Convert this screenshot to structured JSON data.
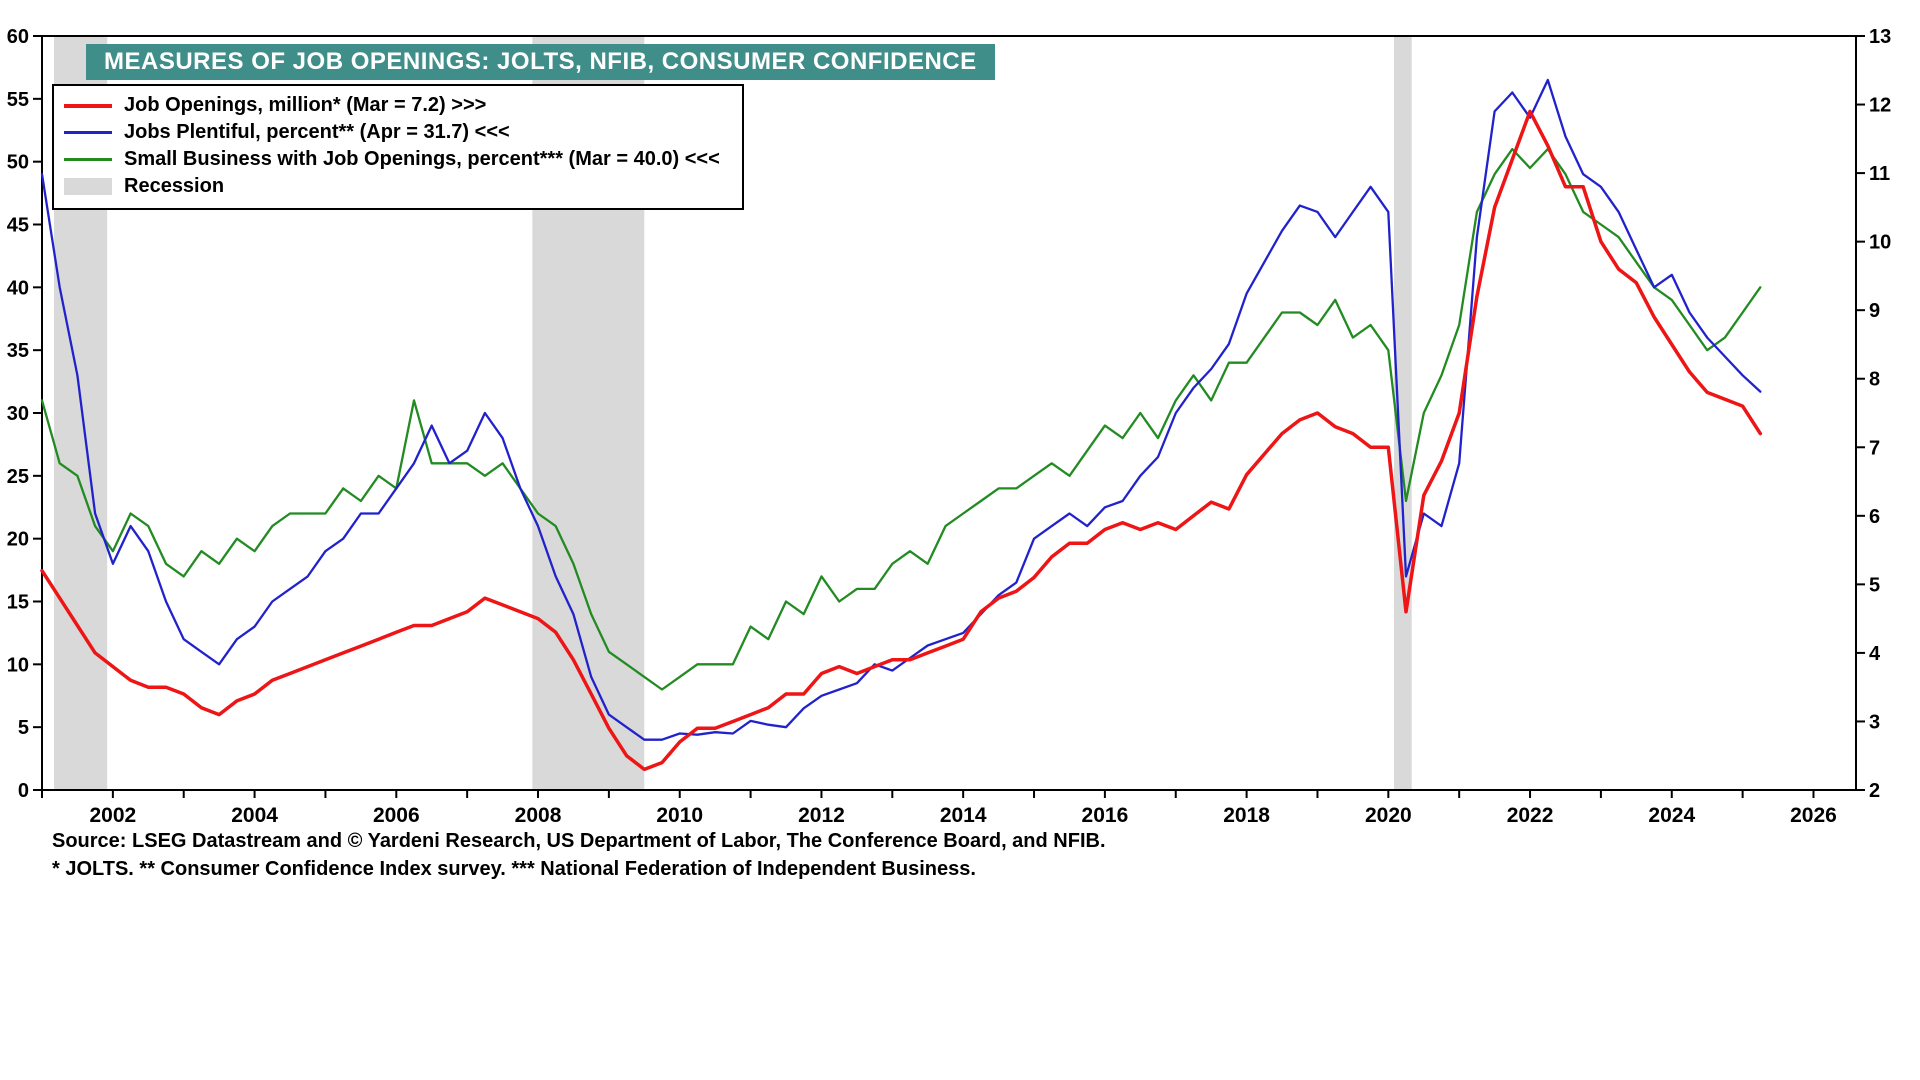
{
  "title": "MEASURES OF JOB OPENINGS: JOLTS, NFIB, CONSUMER CONFIDENCE",
  "source_line": "Source: LSEG Datastream and © Yardeni Research, US Department of Labor, The Conference Board, and NFIB.",
  "footnote_line": "* JOLTS.   ** Consumer Confidence Index survey.   *** National Federation of Independent Business.",
  "colors": {
    "red": "#ed1515",
    "blue": "#2222cc",
    "green": "#228b22",
    "recession": "#d9d9d9",
    "title_bg": "#3f8e89",
    "frame": "#000000"
  },
  "chart_data": {
    "type": "line",
    "title": "MEASURES OF JOB OPENINGS: JOLTS, NFIB, CONSUMER CONFIDENCE",
    "x_axis": {
      "min": 2001,
      "max": 2026.6,
      "major_ticks": [
        2002,
        2004,
        2006,
        2008,
        2010,
        2012,
        2014,
        2016,
        2018,
        2020,
        2022,
        2024,
        2026
      ],
      "minor_tick_every": 1
    },
    "left_axis": {
      "min": 0,
      "max": 60,
      "ticks": [
        0,
        5,
        10,
        15,
        20,
        25,
        30,
        35,
        40,
        45,
        50,
        55,
        60
      ]
    },
    "right_axis": {
      "min": 2,
      "max": 13,
      "ticks": [
        2,
        3,
        4,
        5,
        6,
        7,
        8,
        9,
        10,
        11,
        12,
        13
      ]
    },
    "recession_bands": [
      [
        2001.17,
        2001.92
      ],
      [
        2007.92,
        2009.5
      ],
      [
        2020.08,
        2020.33
      ]
    ],
    "legend": {
      "recession_label": "Recession"
    },
    "x": [
      2001.0,
      2001.25,
      2001.5,
      2001.75,
      2002.0,
      2002.25,
      2002.5,
      2002.75,
      2003.0,
      2003.25,
      2003.5,
      2003.75,
      2004.0,
      2004.25,
      2004.5,
      2004.75,
      2005.0,
      2005.25,
      2005.5,
      2005.75,
      2006.0,
      2006.25,
      2006.5,
      2006.75,
      2007.0,
      2007.25,
      2007.5,
      2007.75,
      2008.0,
      2008.25,
      2008.5,
      2008.75,
      2009.0,
      2009.25,
      2009.5,
      2009.75,
      2010.0,
      2010.25,
      2010.5,
      2010.75,
      2011.0,
      2011.25,
      2011.5,
      2011.75,
      2012.0,
      2012.25,
      2012.5,
      2012.75,
      2013.0,
      2013.25,
      2013.5,
      2013.75,
      2014.0,
      2014.25,
      2014.5,
      2014.75,
      2015.0,
      2015.25,
      2015.5,
      2015.75,
      2016.0,
      2016.25,
      2016.5,
      2016.75,
      2017.0,
      2017.25,
      2017.5,
      2017.75,
      2018.0,
      2018.25,
      2018.5,
      2018.75,
      2019.0,
      2019.25,
      2019.5,
      2019.75,
      2020.0,
      2020.25,
      2020.5,
      2020.75,
      2021.0,
      2021.25,
      2021.5,
      2021.75,
      2022.0,
      2022.25,
      2022.5,
      2022.75,
      2023.0,
      2023.25,
      2023.5,
      2023.75,
      2024.0,
      2024.25,
      2024.5,
      2024.75,
      2025.0,
      2025.25
    ],
    "series": [
      {
        "name": "job-openings",
        "label": "Job Openings, million* (Mar = 7.2) >>>",
        "color_key": "red",
        "axis": "right",
        "stroke_width": 3.5,
        "latest": {
          "period": "Mar",
          "value": 7.2
        },
        "values": [
          5.2,
          4.8,
          4.4,
          4.0,
          3.8,
          3.6,
          3.5,
          3.5,
          3.4,
          3.2,
          3.1,
          3.3,
          3.4,
          3.6,
          3.7,
          3.8,
          3.9,
          4.0,
          4.1,
          4.2,
          4.3,
          4.4,
          4.4,
          4.5,
          4.6,
          4.8,
          4.7,
          4.6,
          4.5,
          4.3,
          3.9,
          3.4,
          2.9,
          2.5,
          2.3,
          2.4,
          2.7,
          2.9,
          2.9,
          3.0,
          3.1,
          3.2,
          3.4,
          3.4,
          3.7,
          3.8,
          3.7,
          3.8,
          3.9,
          3.9,
          4.0,
          4.1,
          4.2,
          4.6,
          4.8,
          4.9,
          5.1,
          5.4,
          5.6,
          5.6,
          5.8,
          5.9,
          5.8,
          5.9,
          5.8,
          6.0,
          6.2,
          6.1,
          6.6,
          6.9,
          7.2,
          7.4,
          7.5,
          7.3,
          7.2,
          7.0,
          7.0,
          4.6,
          6.3,
          6.8,
          7.5,
          9.2,
          10.5,
          11.2,
          11.9,
          11.4,
          10.8,
          10.8,
          10.0,
          9.6,
          9.4,
          8.9,
          8.5,
          8.1,
          7.8,
          7.7,
          7.6,
          7.2
        ]
      },
      {
        "name": "jobs-plentiful",
        "label": "Jobs Plentiful, percent** (Apr = 31.7) <<<",
        "color_key": "blue",
        "axis": "left",
        "stroke_width": 2.3,
        "latest": {
          "period": "Apr",
          "value": 31.7
        },
        "values": [
          49,
          40,
          33,
          22,
          18,
          21,
          19,
          15,
          12,
          11,
          10,
          12,
          13,
          15,
          16,
          17,
          19,
          20,
          22,
          22,
          24,
          26,
          29,
          26,
          27,
          30,
          28,
          24,
          21,
          17,
          14,
          9,
          6,
          5,
          4,
          4,
          4.5,
          4.4,
          4.6,
          4.5,
          5.5,
          5.2,
          5.0,
          6.5,
          7.5,
          8.0,
          8.5,
          10,
          9.5,
          10.5,
          11.5,
          12,
          12.5,
          14,
          15.5,
          16.5,
          20,
          21,
          22,
          21,
          22.5,
          23,
          25,
          26.5,
          30,
          32,
          33.5,
          35.5,
          39.5,
          42,
          44.5,
          46.5,
          46,
          44,
          46,
          48,
          46,
          17,
          22,
          21,
          26,
          44,
          54,
          55.5,
          53.5,
          56.5,
          52,
          49,
          48,
          46,
          43,
          40,
          41,
          38,
          36,
          34.5,
          33,
          31.7
        ]
      },
      {
        "name": "small-business-openings",
        "label": "Small Business with Job Openings, percent*** (Mar = 40.0) <<<",
        "color_key": "green",
        "axis": "left",
        "stroke_width": 2.3,
        "latest": {
          "period": "Mar",
          "value": 40.0
        },
        "values": [
          31,
          26,
          25,
          21,
          19,
          22,
          21,
          18,
          17,
          19,
          18,
          20,
          19,
          21,
          22,
          22,
          22,
          24,
          23,
          25,
          24,
          31,
          26,
          26,
          26,
          25,
          26,
          24,
          22,
          21,
          18,
          14,
          11,
          10,
          9,
          8,
          9,
          10,
          10,
          10,
          13,
          12,
          15,
          14,
          17,
          15,
          16,
          16,
          18,
          19,
          18,
          21,
          22,
          23,
          24,
          24,
          25,
          26,
          25,
          27,
          29,
          28,
          30,
          28,
          31,
          33,
          31,
          34,
          34,
          36,
          38,
          38,
          37,
          39,
          36,
          37,
          35,
          23,
          30,
          33,
          37,
          46,
          49,
          51,
          49.5,
          51,
          49,
          46,
          45,
          44,
          42,
          40,
          39,
          37,
          35,
          36,
          38,
          40
        ]
      }
    ]
  }
}
